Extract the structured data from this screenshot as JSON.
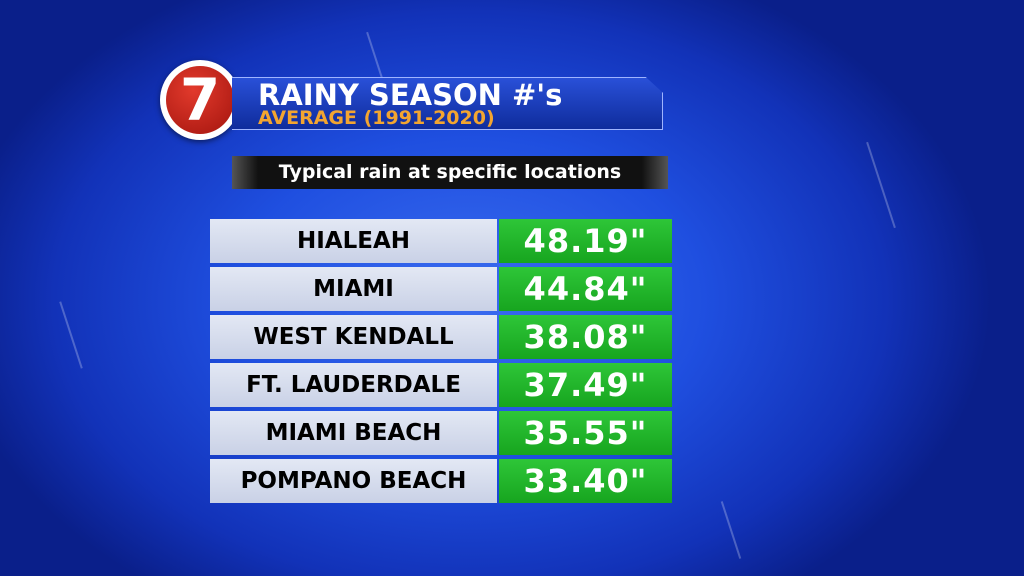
{
  "logo": {
    "text": "7"
  },
  "header": {
    "title": "RAINY SEASON #'s",
    "subtitle": "AVERAGE (1991-2020)"
  },
  "subheader": "Typical rain at specific locations",
  "table": {
    "rows": [
      [
        "HIALEAH",
        "48.19\""
      ],
      [
        "MIAMI",
        "44.84\""
      ],
      [
        "WEST KENDALL",
        "38.08\""
      ],
      [
        "FT. LAUDERDALE",
        "37.49\""
      ],
      [
        "MIAMI BEACH",
        "35.55\""
      ],
      [
        "POMPANO BEACH",
        "33.40\""
      ]
    ]
  }
}
